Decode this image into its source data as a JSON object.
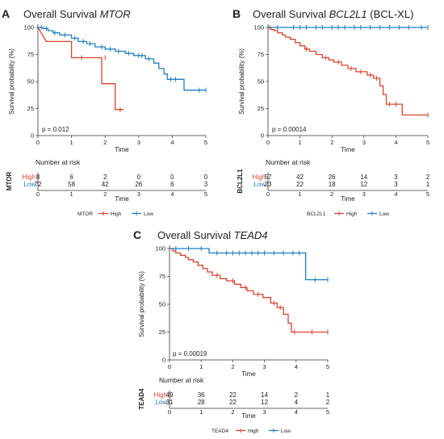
{
  "colors": {
    "high": "#d9432f",
    "low": "#1f7fc0",
    "axis": "#333333"
  },
  "chart_data": [
    {
      "id": "A",
      "letter": "A",
      "type": "line",
      "title_plain": "Overall Survival ",
      "title_italic": "MTOR",
      "title_suffix": "",
      "xlabel": "Time",
      "ylabel": "Survival probability (%)",
      "xlim": [
        0,
        5
      ],
      "ylim": [
        0,
        100
      ],
      "xticks": [
        0,
        1,
        2,
        3,
        4,
        5
      ],
      "yticks": [
        0,
        25,
        50,
        75,
        100
      ],
      "pvalue": "p = 0.012",
      "risk_title": "Number at risk",
      "table_ylabel": "MTOR",
      "legend_title": "MTOR",
      "legend_labels": [
        "High",
        "Low"
      ],
      "series": [
        {
          "name": "High",
          "color_key": "high",
          "steps": [
            [
              0,
              100
            ],
            [
              0.25,
              87
            ],
            [
              1.0,
              87
            ],
            [
              1.0,
              72
            ],
            [
              1.9,
              72
            ],
            [
              1.9,
              48
            ],
            [
              2.3,
              48
            ],
            [
              2.3,
              24
            ],
            [
              2.55,
              24
            ]
          ],
          "censors": [
            [
              2.45,
              24
            ],
            [
              2.0,
              72
            ],
            [
              1.3,
              72
            ]
          ],
          "at_risk": [
            8,
            6,
            2,
            0,
            0,
            0
          ]
        },
        {
          "name": "Low",
          "color_key": "low",
          "steps": [
            [
              0,
              100
            ],
            [
              0.15,
              100
            ],
            [
              0.15,
              99
            ],
            [
              0.3,
              99
            ],
            [
              0.3,
              97
            ],
            [
              0.45,
              97
            ],
            [
              0.45,
              95
            ],
            [
              0.65,
              95
            ],
            [
              0.65,
              93
            ],
            [
              1.0,
              93
            ],
            [
              1.0,
              90
            ],
            [
              1.2,
              90
            ],
            [
              1.2,
              87
            ],
            [
              1.45,
              87
            ],
            [
              1.45,
              85
            ],
            [
              1.7,
              85
            ],
            [
              1.7,
              82
            ],
            [
              2.0,
              82
            ],
            [
              2.0,
              80
            ],
            [
              2.3,
              80
            ],
            [
              2.3,
              78
            ],
            [
              2.6,
              78
            ],
            [
              2.6,
              76
            ],
            [
              2.85,
              76
            ],
            [
              2.85,
              74
            ],
            [
              3.2,
              74
            ],
            [
              3.2,
              71
            ],
            [
              3.45,
              71
            ],
            [
              3.45,
              67
            ],
            [
              3.6,
              67
            ],
            [
              3.6,
              62
            ],
            [
              3.75,
              62
            ],
            [
              3.75,
              57
            ],
            [
              3.85,
              57
            ],
            [
              3.85,
              52
            ],
            [
              4.35,
              52
            ],
            [
              4.35,
              42
            ],
            [
              5.0,
              42
            ]
          ],
          "censors": [
            [
              0.1,
              100
            ],
            [
              0.25,
              99
            ],
            [
              0.5,
              95
            ],
            [
              0.8,
              93
            ],
            [
              1.1,
              90
            ],
            [
              1.35,
              87
            ],
            [
              1.55,
              85
            ],
            [
              1.9,
              82
            ],
            [
              2.15,
              80
            ],
            [
              2.4,
              78
            ],
            [
              2.7,
              76
            ],
            [
              3.0,
              74
            ],
            [
              3.1,
              74
            ],
            [
              3.3,
              71
            ],
            [
              3.95,
              52
            ],
            [
              4.1,
              52
            ],
            [
              4.8,
              42
            ],
            [
              5.0,
              42
            ]
          ],
          "at_risk": [
            72,
            58,
            42,
            26,
            6,
            3
          ]
        }
      ]
    },
    {
      "id": "B",
      "letter": "B",
      "type": "line",
      "title_plain": "Overall Survival ",
      "title_italic": "BCL2L1",
      "title_suffix": " (BCL-XL)",
      "xlabel": "Time",
      "ylabel": "Survival probability (%)",
      "xlim": [
        0,
        5
      ],
      "ylim": [
        0,
        100
      ],
      "xticks": [
        0,
        1,
        2,
        3,
        4,
        5
      ],
      "yticks": [
        0,
        25,
        50,
        75,
        100
      ],
      "pvalue": "p = 0.00014",
      "risk_title": "Number at risk",
      "table_ylabel": "BCL2L1",
      "legend_title": "BCL2L1",
      "legend_labels": [
        "High",
        "Low"
      ],
      "series": [
        {
          "name": "High",
          "color_key": "high",
          "steps": [
            [
              0,
              100
            ],
            [
              0.1,
              100
            ],
            [
              0.1,
              98
            ],
            [
              0.2,
              98
            ],
            [
              0.2,
              97
            ],
            [
              0.3,
              97
            ],
            [
              0.3,
              95
            ],
            [
              0.45,
              95
            ],
            [
              0.45,
              93
            ],
            [
              0.55,
              93
            ],
            [
              0.55,
              91
            ],
            [
              0.7,
              91
            ],
            [
              0.7,
              89
            ],
            [
              0.85,
              89
            ],
            [
              0.85,
              86
            ],
            [
              1.0,
              86
            ],
            [
              1.0,
              83
            ],
            [
              1.15,
              83
            ],
            [
              1.15,
              80
            ],
            [
              1.3,
              80
            ],
            [
              1.3,
              78
            ],
            [
              1.5,
              78
            ],
            [
              1.5,
              75
            ],
            [
              1.7,
              75
            ],
            [
              1.7,
              72
            ],
            [
              1.9,
              72
            ],
            [
              1.9,
              70
            ],
            [
              2.05,
              70
            ],
            [
              2.05,
              68
            ],
            [
              2.3,
              68
            ],
            [
              2.3,
              65
            ],
            [
              2.5,
              65
            ],
            [
              2.5,
              62
            ],
            [
              2.75,
              62
            ],
            [
              2.75,
              59
            ],
            [
              3.1,
              59
            ],
            [
              3.1,
              56
            ],
            [
              3.3,
              56
            ],
            [
              3.3,
              53
            ],
            [
              3.5,
              53
            ],
            [
              3.5,
              46
            ],
            [
              3.6,
              46
            ],
            [
              3.6,
              38
            ],
            [
              3.7,
              38
            ],
            [
              3.7,
              29
            ],
            [
              4.2,
              29
            ],
            [
              4.2,
              19
            ],
            [
              5.0,
              19
            ]
          ],
          "censors": [
            [
              0.05,
              100
            ],
            [
              1.2,
              80
            ],
            [
              1.8,
              72
            ],
            [
              2.2,
              68
            ],
            [
              2.6,
              62
            ],
            [
              2.9,
              59
            ],
            [
              3.2,
              56
            ],
            [
              3.4,
              53
            ],
            [
              3.8,
              29
            ],
            [
              4.0,
              29
            ],
            [
              5.0,
              19
            ]
          ],
          "at_risk": [
            57,
            42,
            26,
            14,
            3,
            2
          ]
        },
        {
          "name": "Low",
          "color_key": "low",
          "steps": [
            [
              0,
              100
            ],
            [
              5.0,
              100
            ]
          ],
          "censors": [
            [
              0.3,
              100
            ],
            [
              0.8,
              100
            ],
            [
              1.0,
              100
            ],
            [
              1.2,
              100
            ],
            [
              1.5,
              100
            ],
            [
              1.7,
              100
            ],
            [
              2.0,
              100
            ],
            [
              2.2,
              100
            ],
            [
              2.4,
              100
            ],
            [
              2.7,
              100
            ],
            [
              2.9,
              100
            ],
            [
              3.2,
              100
            ],
            [
              3.5,
              100
            ],
            [
              3.8,
              100
            ],
            [
              4.1,
              100
            ],
            [
              4.4,
              100
            ],
            [
              4.8,
              100
            ],
            [
              5.0,
              100
            ]
          ],
          "at_risk": [
            23,
            22,
            18,
            12,
            3,
            1
          ]
        }
      ]
    },
    {
      "id": "C",
      "letter": "C",
      "type": "line",
      "title_plain": "Overall Survival ",
      "title_italic": "TEAD4",
      "title_suffix": "",
      "xlabel": "Time",
      "ylabel": "Survival probability (%)",
      "xlim": [
        0,
        5
      ],
      "ylim": [
        0,
        100
      ],
      "xticks": [
        0,
        1,
        2,
        3,
        4,
        5
      ],
      "yticks": [
        0,
        25,
        50,
        75,
        100
      ],
      "pvalue": "p = 0.00019",
      "risk_title": "Number at risk",
      "table_ylabel": "TEAD4",
      "legend_title": "TEAD4",
      "legend_labels": [
        "High",
        "Low"
      ],
      "series": [
        {
          "name": "High",
          "color_key": "high",
          "steps": [
            [
              0,
              100
            ],
            [
              0.1,
              100
            ],
            [
              0.1,
              98
            ],
            [
              0.2,
              98
            ],
            [
              0.2,
              96
            ],
            [
              0.35,
              96
            ],
            [
              0.35,
              94
            ],
            [
              0.5,
              94
            ],
            [
              0.5,
              92
            ],
            [
              0.6,
              92
            ],
            [
              0.6,
              90
            ],
            [
              0.75,
              90
            ],
            [
              0.75,
              88
            ],
            [
              0.9,
              88
            ],
            [
              0.9,
              85
            ],
            [
              1.05,
              85
            ],
            [
              1.05,
              82
            ],
            [
              1.2,
              82
            ],
            [
              1.2,
              79
            ],
            [
              1.35,
              79
            ],
            [
              1.35,
              76
            ],
            [
              1.6,
              76
            ],
            [
              1.6,
              73
            ],
            [
              1.8,
              73
            ],
            [
              1.8,
              71
            ],
            [
              2.05,
              71
            ],
            [
              2.05,
              68
            ],
            [
              2.25,
              68
            ],
            [
              2.25,
              65
            ],
            [
              2.45,
              65
            ],
            [
              2.45,
              62
            ],
            [
              2.65,
              62
            ],
            [
              2.65,
              59
            ],
            [
              2.95,
              59
            ],
            [
              2.95,
              56
            ],
            [
              3.2,
              56
            ],
            [
              3.2,
              51
            ],
            [
              3.4,
              51
            ],
            [
              3.4,
              47
            ],
            [
              3.6,
              47
            ],
            [
              3.6,
              41
            ],
            [
              3.75,
              41
            ],
            [
              3.75,
              33
            ],
            [
              3.85,
              33
            ],
            [
              3.85,
              25
            ],
            [
              5.0,
              25
            ]
          ],
          "censors": [
            [
              1.5,
              76
            ],
            [
              2.0,
              71
            ],
            [
              2.4,
              65
            ],
            [
              2.8,
              59
            ],
            [
              3.3,
              51
            ],
            [
              3.5,
              47
            ],
            [
              3.95,
              25
            ],
            [
              4.5,
              25
            ],
            [
              5.0,
              25
            ]
          ],
          "at_risk": [
            49,
            36,
            22,
            14,
            2,
            1
          ]
        },
        {
          "name": "Low",
          "color_key": "low",
          "steps": [
            [
              0,
              100
            ],
            [
              1.25,
              100
            ],
            [
              1.25,
              96
            ],
            [
              4.3,
              96
            ],
            [
              4.3,
              72
            ],
            [
              5.0,
              72
            ]
          ],
          "censors": [
            [
              0.2,
              100
            ],
            [
              0.6,
              100
            ],
            [
              1.0,
              100
            ],
            [
              1.5,
              96
            ],
            [
              1.8,
              96
            ],
            [
              2.0,
              96
            ],
            [
              2.2,
              96
            ],
            [
              2.4,
              96
            ],
            [
              2.6,
              96
            ],
            [
              2.8,
              96
            ],
            [
              3.0,
              96
            ],
            [
              3.3,
              96
            ],
            [
              3.6,
              96
            ],
            [
              3.9,
              96
            ],
            [
              4.1,
              96
            ],
            [
              4.6,
              72
            ],
            [
              5.0,
              72
            ]
          ],
          "at_risk": [
            31,
            28,
            22,
            12,
            4,
            2
          ]
        }
      ]
    }
  ]
}
